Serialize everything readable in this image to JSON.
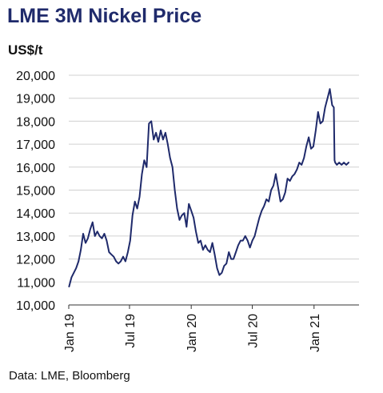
{
  "colors": {
    "title": "#1f2a6b",
    "line": "#1f2a6b",
    "grid": "#d0d0d0",
    "axis": "#333333",
    "text": "#111111"
  },
  "title_text": "LME 3M Nickel Price",
  "unit_text": "US$/t",
  "source_text": "Data: LME, Bloomberg",
  "chart_data": {
    "type": "line",
    "title": "LME 3M Nickel Price",
    "ylabel": "US$/t",
    "xlabel": "",
    "ylim": [
      10000,
      20000
    ],
    "xlim": [
      "2019-01-01",
      "2021-05-15"
    ],
    "y_ticks": [
      10000,
      11000,
      12000,
      13000,
      14000,
      15000,
      16000,
      17000,
      18000,
      19000,
      20000
    ],
    "y_tick_labels": [
      "10,000",
      "11,000",
      "12,000",
      "13,000",
      "14,000",
      "15,000",
      "16,000",
      "17,000",
      "18,000",
      "19,000",
      "20,000"
    ],
    "x_ticks": [
      "2019-01-01",
      "2019-07-01",
      "2020-01-01",
      "2020-07-01",
      "2021-01-01"
    ],
    "x_tick_labels": [
      "Jan 19",
      "Jul 19",
      "Jan 20",
      "Jul 20",
      "Jan 21"
    ],
    "grid": "horizontal",
    "legend": "none",
    "series": [
      {
        "x": [
          "2019-01-02",
          "2019-01-09",
          "2019-01-16",
          "2019-01-23",
          "2019-01-30",
          "2019-02-06",
          "2019-02-13",
          "2019-02-20",
          "2019-02-27",
          "2019-03-06",
          "2019-03-13",
          "2019-03-20",
          "2019-03-27",
          "2019-04-03",
          "2019-04-10",
          "2019-04-17",
          "2019-04-24",
          "2019-05-01",
          "2019-05-08",
          "2019-05-15",
          "2019-05-22",
          "2019-05-29",
          "2019-06-05",
          "2019-06-12",
          "2019-06-19",
          "2019-06-26",
          "2019-07-03",
          "2019-07-10",
          "2019-07-17",
          "2019-07-24",
          "2019-07-31",
          "2019-08-07",
          "2019-08-14",
          "2019-08-21",
          "2019-08-28",
          "2019-09-04",
          "2019-09-11",
          "2019-09-18",
          "2019-09-25",
          "2019-10-02",
          "2019-10-09",
          "2019-10-16",
          "2019-10-23",
          "2019-10-30",
          "2019-11-06",
          "2019-11-13",
          "2019-11-20",
          "2019-11-27",
          "2019-12-04",
          "2019-12-11",
          "2019-12-18",
          "2019-12-25",
          "2020-01-01",
          "2020-01-08",
          "2020-01-15",
          "2020-01-22",
          "2020-01-29",
          "2020-02-05",
          "2020-02-12",
          "2020-02-19",
          "2020-02-26",
          "2020-03-04",
          "2020-03-11",
          "2020-03-18",
          "2020-03-25",
          "2020-04-01",
          "2020-04-08",
          "2020-04-15",
          "2020-04-22",
          "2020-04-29",
          "2020-05-06",
          "2020-05-13",
          "2020-05-20",
          "2020-05-27",
          "2020-06-03",
          "2020-06-10",
          "2020-06-17",
          "2020-06-24",
          "2020-07-01",
          "2020-07-08",
          "2020-07-15",
          "2020-07-22",
          "2020-07-29",
          "2020-08-05",
          "2020-08-12",
          "2020-08-19",
          "2020-08-26",
          "2020-09-02",
          "2020-09-09",
          "2020-09-16",
          "2020-09-23",
          "2020-09-30",
          "2020-10-07",
          "2020-10-14",
          "2020-10-21",
          "2020-10-28",
          "2020-11-04",
          "2020-11-11",
          "2020-11-18",
          "2020-11-25",
          "2020-12-02",
          "2020-12-09",
          "2020-12-16",
          "2020-12-23",
          "2020-12-30",
          "2021-01-06",
          "2021-01-13",
          "2021-01-20",
          "2021-01-27",
          "2021-02-03",
          "2021-02-10",
          "2021-02-17",
          "2021-02-24",
          "2021-03-01",
          "2021-03-03",
          "2021-03-05",
          "2021-03-10",
          "2021-03-17",
          "2021-03-24",
          "2021-03-31",
          "2021-04-07",
          "2021-04-14"
        ],
        "y": [
          10800,
          11200,
          11400,
          11600,
          11900,
          12400,
          13100,
          12700,
          12900,
          13300,
          13600,
          13000,
          13200,
          13000,
          12900,
          13100,
          12800,
          12300,
          12200,
          12100,
          11900,
          11800,
          11900,
          12100,
          11900,
          12300,
          12800,
          13900,
          14500,
          14200,
          14700,
          15700,
          16300,
          16000,
          17900,
          18000,
          17200,
          17500,
          17100,
          17600,
          17200,
          17500,
          17000,
          16400,
          16000,
          15000,
          14200,
          13700,
          13900,
          14000,
          13400,
          14400,
          14100,
          13800,
          13200,
          12700,
          12800,
          12400,
          12600,
          12400,
          12300,
          12700,
          12200,
          11600,
          11300,
          11400,
          11700,
          11800,
          12300,
          12000,
          12000,
          12300,
          12600,
          12800,
          12800,
          13000,
          12800,
          12500,
          12800,
          13000,
          13400,
          13800,
          14100,
          14300,
          14600,
          14500,
          15000,
          15200,
          15700,
          15100,
          14500,
          14600,
          14900,
          15500,
          15400,
          15600,
          15700,
          15900,
          16200,
          16100,
          16400,
          16900,
          17300,
          16800,
          16900,
          17600,
          18400,
          17900,
          18000,
          18600,
          19000,
          19400,
          18700,
          18600,
          16300,
          16200,
          16100,
          16200,
          16100,
          16200,
          16100,
          16200
        ]
      }
    ]
  }
}
